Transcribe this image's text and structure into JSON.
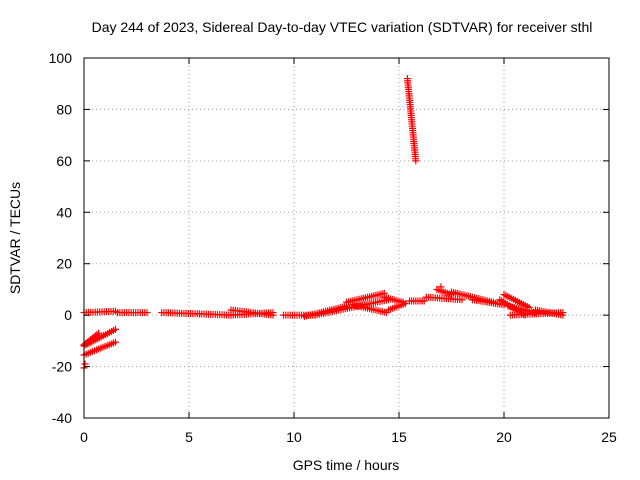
{
  "chart_data": {
    "type": "scatter",
    "title": "Day 244 of 2023, Sidereal Day-to-day VTEC variation (SDTVAR) for receiver sthl",
    "xlabel": "GPS time / hours",
    "ylabel": "SDTVAR / TECUs",
    "xlim": [
      0,
      25
    ],
    "ylim": [
      -40,
      100
    ],
    "xticks": [
      0,
      5,
      10,
      15,
      20,
      25
    ],
    "yticks": [
      -40,
      -20,
      0,
      20,
      40,
      60,
      80,
      100
    ],
    "grid": true,
    "legend": "none",
    "marker": "+",
    "series": [
      {
        "name": "SDTVAR",
        "color": "#ff0000",
        "segments": [
          {
            "x0": 0.0,
            "x1": 1.5,
            "y0": -15.5,
            "y1": -10.5
          },
          {
            "x0": 0.0,
            "x1": 1.5,
            "y0": -12.0,
            "y1": -5.5
          },
          {
            "x0": 0.0,
            "x1": 0.7,
            "y0": -11.5,
            "y1": -7.0
          },
          {
            "x0": 0.0,
            "x1": 1.5,
            "y0": 1.0,
            "y1": 1.5
          },
          {
            "x0": 1.6,
            "x1": 3.0,
            "y0": 1.0,
            "y1": 1.0
          },
          {
            "x0": 3.7,
            "x1": 5.5,
            "y0": 1.0,
            "y1": 0.5
          },
          {
            "x0": 5.5,
            "x1": 7.0,
            "y0": 0.5,
            "y1": 0.0
          },
          {
            "x0": 7.0,
            "x1": 9.0,
            "y0": 0.0,
            "y1": 1.0
          },
          {
            "x0": 7.0,
            "x1": 9.0,
            "y0": 2.0,
            "y1": 0.0
          },
          {
            "x0": 9.5,
            "x1": 11.0,
            "y0": 0.0,
            "y1": 0.0
          },
          {
            "x0": 10.5,
            "x1": 12.5,
            "y0": -0.5,
            "y1": 3.5
          },
          {
            "x0": 11.0,
            "x1": 14.5,
            "y0": 0.0,
            "y1": 6.0
          },
          {
            "x0": 12.5,
            "x1": 14.3,
            "y0": 5.0,
            "y1": 8.5
          },
          {
            "x0": 12.8,
            "x1": 14.4,
            "y0": 4.0,
            "y1": 1.0
          },
          {
            "x0": 14.3,
            "x1": 15.2,
            "y0": 7.0,
            "y1": 5.0
          },
          {
            "x0": 14.5,
            "x1": 15.3,
            "y0": 2.0,
            "y1": 4.5
          },
          {
            "x0": 15.4,
            "x1": 15.8,
            "y0": 92.0,
            "y1": 60.0
          },
          {
            "x0": 15.5,
            "x1": 16.2,
            "y0": 5.5,
            "y1": 5.5
          },
          {
            "x0": 16.3,
            "x1": 18.0,
            "y0": 7.0,
            "y1": 6.0
          },
          {
            "x0": 16.8,
            "x1": 17.5,
            "y0": 10.0,
            "y1": 8.0
          },
          {
            "x0": 17.5,
            "x1": 19.5,
            "y0": 9.0,
            "y1": 5.0
          },
          {
            "x0": 18.5,
            "x1": 20.0,
            "y0": 6.0,
            "y1": 4.0
          },
          {
            "x0": 19.8,
            "x1": 21.0,
            "y0": 6.0,
            "y1": 0.0
          },
          {
            "x0": 20.0,
            "x1": 21.2,
            "y0": 8.0,
            "y1": 3.0
          },
          {
            "x0": 20.2,
            "x1": 21.5,
            "y0": 3.5,
            "y1": 1.0
          },
          {
            "x0": 20.3,
            "x1": 22.8,
            "y0": 0.0,
            "y1": 1.0
          },
          {
            "x0": 21.5,
            "x1": 22.8,
            "y0": 2.0,
            "y1": 0.0
          }
        ],
        "points": [
          {
            "x": 0.0,
            "y": -20.5
          },
          {
            "x": 0.05,
            "y": -19.0
          },
          {
            "x": 17.0,
            "y": 11.0
          },
          {
            "x": 16.1,
            "y": 5.5
          }
        ]
      }
    ]
  }
}
